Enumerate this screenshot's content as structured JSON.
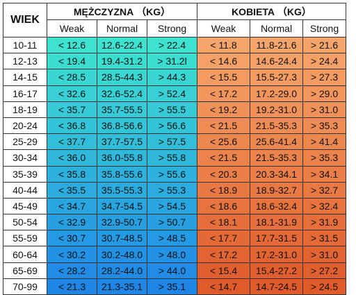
{
  "header": {
    "age_label": "WIEK",
    "male_label": "MĘŻCZYZNA （KG）",
    "female_label": "KOBIETA （KG）",
    "male_cols": [
      "Weak",
      "Normal",
      "Strong"
    ],
    "female_cols": [
      "Weak",
      "Normal",
      "Strong"
    ]
  },
  "colors": {
    "male_gradient_top": "#3ee3cf",
    "male_gradient_bottom": "#1f86e8",
    "female_gradient_top": "#f6a56a",
    "female_gradient_bottom": "#e05a2a"
  },
  "rows": [
    {
      "age": "10-11",
      "m": [
        "< 12.6",
        "12.6-22.4",
        "> 22.4"
      ],
      "k": [
        "< 11.8",
        "11.8-21.6",
        "> 21.6"
      ]
    },
    {
      "age": "12-13",
      "m": [
        "< 19.4",
        "19.4-31.2",
        "> 31.2l"
      ],
      "k": [
        "< 14.6",
        "14.6-24.4",
        "> 24.4"
      ]
    },
    {
      "age": "14-15",
      "m": [
        "< 28.5",
        "28.5-44.3",
        "> 44.3"
      ],
      "k": [
        "< 15.5",
        "15.5-27.3",
        "> 27.3"
      ]
    },
    {
      "age": "16-17",
      "m": [
        "< 32.6",
        "32.6-52.4",
        "> 52.4"
      ],
      "k": [
        "< 17.2",
        "17.2-29.0",
        "> 29.0"
      ]
    },
    {
      "age": "18-19",
      "m": [
        "< 35.7",
        "35.7-55.5",
        "> 55.5"
      ],
      "k": [
        "< 19.2",
        "19.2-31.0",
        "> 31.0"
      ]
    },
    {
      "age": "20-24",
      "m": [
        "< 36.8",
        "36.8-56.6",
        "> 56.6"
      ],
      "k": [
        "< 21.5",
        "21.5-35.3",
        "> 35.3"
      ]
    },
    {
      "age": "25-29",
      "m": [
        "< 37.7",
        "37.7-57.5",
        "> 57.5"
      ],
      "k": [
        "< 25.6",
        "25.6-41.4",
        "> 41.4"
      ]
    },
    {
      "age": "30-34",
      "m": [
        "< 36.0",
        "36.0-55.8",
        "> 55.8"
      ],
      "k": [
        "< 21.5",
        "21.5-35.3",
        "> 35.3"
      ]
    },
    {
      "age": "35-39",
      "m": [
        "< 35.8",
        "35.8-55.6",
        "> 55.6"
      ],
      "k": [
        "< 20.3",
        "20.3-34.1",
        "> 34.1"
      ]
    },
    {
      "age": "40-44",
      "m": [
        "< 35.5",
        "35.5-55.3",
        "> 55.3"
      ],
      "k": [
        "< 18.9",
        "18.9-32.7",
        "> 32.7"
      ]
    },
    {
      "age": "45-49",
      "m": [
        "< 34.7",
        "34.7-54.5",
        "> 54.5"
      ],
      "k": [
        "< 18.6",
        "18.6-32.4",
        "> 32.4"
      ]
    },
    {
      "age": "50-54",
      "m": [
        "< 32.9",
        "32.9-50.7",
        "> 50.7"
      ],
      "k": [
        "< 18.1",
        "18.1-31.9",
        "> 31.9"
      ]
    },
    {
      "age": "55-59",
      "m": [
        "< 30.7",
        "30.7-48.5",
        "> 48.5"
      ],
      "k": [
        "< 17.7",
        "17.7-31.5",
        "> 31.5"
      ]
    },
    {
      "age": "60-64",
      "m": [
        "< 30.2",
        "30.2-48.0",
        "> 48.0"
      ],
      "k": [
        "< 17.2",
        "17.2-31.0",
        "> 31.0"
      ]
    },
    {
      "age": "65-69",
      "m": [
        "< 28.2",
        "28.2-44.0",
        "> 44.0"
      ],
      "k": [
        "< 15.4",
        "15.4-27.2",
        "> 27.2"
      ]
    },
    {
      "age": "70-99",
      "m": [
        "< 21.3",
        "21.3-35.1",
        "> 35.1"
      ],
      "k": [
        "< 14.7",
        "14.7-24.5",
        "> 24.5"
      ]
    }
  ]
}
